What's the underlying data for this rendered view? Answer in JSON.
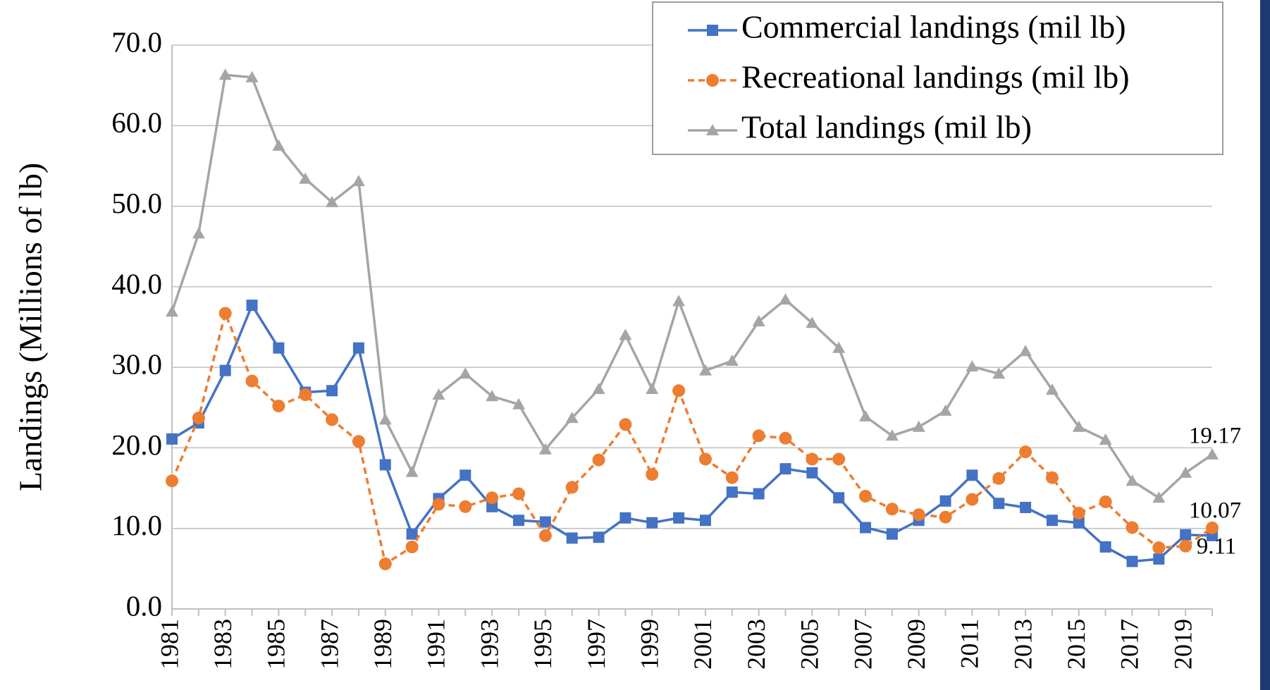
{
  "chart_data": {
    "type": "line",
    "y_label": "Landings (Millions of lb)",
    "x": [
      1981,
      1982,
      1983,
      1984,
      1985,
      1986,
      1987,
      1988,
      1989,
      1990,
      1991,
      1992,
      1993,
      1994,
      1995,
      1996,
      1997,
      1998,
      1999,
      2000,
      2001,
      2002,
      2003,
      2004,
      2005,
      2006,
      2007,
      2008,
      2009,
      2010,
      2011,
      2012,
      2013,
      2014,
      2015,
      2016,
      2017,
      2018,
      2019,
      2020
    ],
    "xlim": [
      1981,
      2020
    ],
    "xticks": [
      1981,
      1983,
      1985,
      1987,
      1989,
      1991,
      1993,
      1995,
      1997,
      1999,
      2001,
      2003,
      2005,
      2007,
      2009,
      2011,
      2013,
      2015,
      2017,
      2019
    ],
    "ylim": [
      0,
      70
    ],
    "yticks": [
      {
        "value": 0,
        "label": "0.0"
      },
      {
        "value": 10,
        "label": "10.0"
      },
      {
        "value": 20,
        "label": "20.0"
      },
      {
        "value": 30,
        "label": "30.0"
      },
      {
        "value": 40,
        "label": "40.0"
      },
      {
        "value": 50,
        "label": "50.0"
      },
      {
        "value": 60,
        "label": "60.0"
      },
      {
        "value": 70,
        "label": "70.0"
      }
    ],
    "grid": true,
    "legend": "top-right",
    "series": [
      {
        "name": "Commercial landings (mil lb)",
        "color": "#4472c4",
        "marker": "square",
        "dashed": false,
        "label_last": true,
        "values": [
          21.1,
          23.1,
          29.6,
          37.7,
          32.4,
          26.9,
          27.1,
          32.4,
          17.9,
          9.3,
          13.7,
          16.6,
          12.7,
          11.0,
          10.8,
          8.8,
          8.9,
          11.3,
          10.7,
          11.3,
          11.0,
          14.5,
          14.3,
          17.4,
          16.9,
          13.8,
          10.1,
          9.3,
          11.0,
          13.4,
          16.6,
          13.1,
          12.6,
          11.0,
          10.7,
          7.7,
          5.9,
          6.2,
          9.2,
          9.11
        ]
      },
      {
        "name": "Recreational landings (mil lb)",
        "color": "#ed7d31",
        "marker": "circle",
        "dashed": true,
        "label_last": true,
        "values": [
          15.9,
          23.7,
          36.7,
          28.3,
          25.2,
          26.6,
          23.5,
          20.8,
          5.6,
          7.7,
          13.0,
          12.7,
          13.8,
          14.3,
          9.1,
          15.1,
          18.5,
          22.9,
          16.7,
          27.1,
          18.6,
          16.3,
          21.5,
          21.2,
          18.6,
          18.6,
          14.0,
          12.4,
          11.7,
          11.4,
          13.6,
          16.2,
          19.5,
          16.3,
          11.9,
          13.3,
          10.1,
          7.6,
          7.8,
          10.07
        ]
      },
      {
        "name": "Total landings (mil lb)",
        "color": "#a5a5a5",
        "marker": "triangle",
        "dashed": false,
        "label_last": true,
        "values": [
          36.9,
          46.6,
          66.3,
          66.0,
          57.5,
          53.4,
          50.5,
          53.1,
          23.5,
          17.0,
          26.6,
          29.2,
          26.4,
          25.4,
          19.8,
          23.7,
          27.3,
          34.0,
          27.3,
          38.2,
          29.6,
          30.8,
          35.7,
          38.4,
          35.5,
          32.4,
          23.9,
          21.5,
          22.6,
          24.6,
          30.1,
          29.2,
          32.0,
          27.2,
          22.6,
          21.0,
          15.9,
          13.8,
          16.9,
          19.17
        ]
      }
    ]
  }
}
